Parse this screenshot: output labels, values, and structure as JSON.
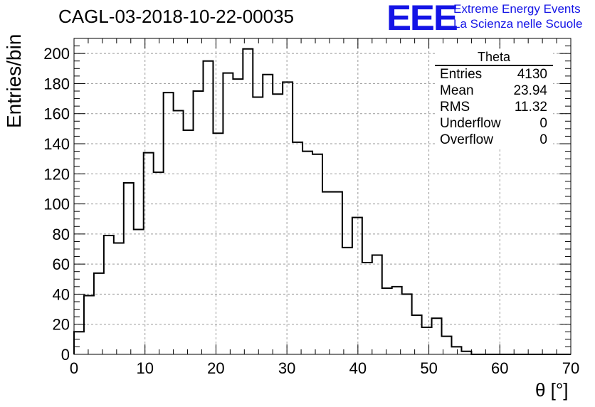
{
  "title": "CAGL-03-2018-10-22-00035",
  "logo": {
    "mark": "EEE",
    "line1": "Extreme Energy Events",
    "line2": "La Scienza nelle Scuole",
    "color": "#1414e6"
  },
  "stats": {
    "title": "Theta",
    "rows": [
      {
        "label": "Entries",
        "value": "4130"
      },
      {
        "label": "Mean",
        "value": "23.94"
      },
      {
        "label": "RMS",
        "value": "11.32"
      },
      {
        "label": "Underflow",
        "value": "0"
      },
      {
        "label": "Overflow",
        "value": "0"
      }
    ]
  },
  "chart_data": {
    "type": "bar",
    "style": "histogram-step",
    "xlabel": "θ [°]",
    "ylabel": "Entries/bin",
    "xlim": [
      0,
      70
    ],
    "ylim": [
      0,
      210
    ],
    "grid": true,
    "xticks": [
      0,
      10,
      20,
      30,
      40,
      50,
      60,
      70
    ],
    "yticks": [
      0,
      20,
      40,
      60,
      80,
      100,
      120,
      140,
      160,
      180,
      200
    ],
    "bin_width": 1.4,
    "bin_edges_start": 0,
    "values": [
      15,
      39,
      54,
      79,
      74,
      114,
      83,
      134,
      121,
      174,
      162,
      149,
      175,
      195,
      147,
      187,
      183,
      203,
      171,
      186,
      173,
      181,
      141,
      135,
      133,
      108,
      108,
      71,
      91,
      61,
      66,
      44,
      45,
      40,
      26,
      18,
      24,
      12,
      5,
      2,
      0,
      0,
      0,
      0,
      0,
      0,
      0,
      0,
      0,
      0
    ]
  }
}
